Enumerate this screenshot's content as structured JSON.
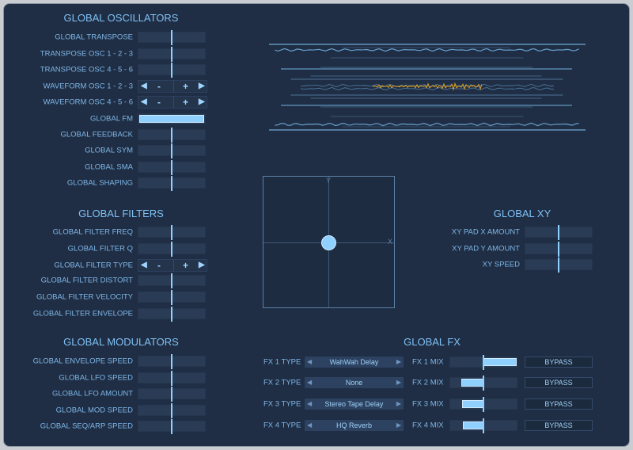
{
  "accent": "#8fd0ff",
  "wave_color": "#e0a020",
  "oscillators": {
    "title": "GLOBAL OSCILLATORS",
    "rows": [
      {
        "label": "GLOBAL TRANSPOSE",
        "type": "slider",
        "value": 0.5
      },
      {
        "label": "TRANSPOSE OSC 1 - 2 - 3",
        "type": "slider",
        "value": 0.5
      },
      {
        "label": "TRANSPOSE OSC 4 - 5 - 6",
        "type": "slider",
        "value": 0.5
      },
      {
        "label": "WAVEFORM OSC 1 - 2 - 3",
        "type": "stepper"
      },
      {
        "label": "WAVEFORM OSC 4 - 5 - 6",
        "type": "stepper"
      },
      {
        "label": "GLOBAL FM",
        "type": "fill",
        "value": 1.0
      },
      {
        "label": "GLOBAL FEEDBACK",
        "type": "slider",
        "value": 0.5
      },
      {
        "label": "GLOBAL SYM",
        "type": "slider",
        "value": 0.5
      },
      {
        "label": "GLOBAL SMA",
        "type": "slider",
        "value": 0.5
      },
      {
        "label": "GLOBAL SHAPING",
        "type": "slider",
        "value": 0.5
      }
    ]
  },
  "filters": {
    "title": "GLOBAL FILTERS",
    "rows": [
      {
        "label": "GLOBAL FILTER FREQ",
        "type": "slider",
        "value": 0.5
      },
      {
        "label": "GLOBAL FILTER Q",
        "type": "slider",
        "value": 0.5
      },
      {
        "label": "GLOBAL FILTER TYPE",
        "type": "stepper"
      },
      {
        "label": "GLOBAL FILTER DISTORT",
        "type": "slider",
        "value": 0.5
      },
      {
        "label": "GLOBAL FILTER VELOCITY",
        "type": "slider",
        "value": 0.5
      },
      {
        "label": "GLOBAL FILTER ENVELOPE",
        "type": "slider",
        "value": 0.5
      }
    ]
  },
  "modulators": {
    "title": "GLOBAL MODULATORS",
    "rows": [
      {
        "label": "GLOBAL ENVELOPE SPEED",
        "type": "slider",
        "value": 0.5
      },
      {
        "label": "GLOBAL LFO SPEED",
        "type": "slider",
        "value": 0.5
      },
      {
        "label": "GLOBAL LFO AMOUNT",
        "type": "slider",
        "value": 0.5
      },
      {
        "label": "GLOBAL MOD SPEED",
        "type": "slider",
        "value": 0.5
      },
      {
        "label": "GLOBAL SEQ/ARP SPEED",
        "type": "slider",
        "value": 0.5
      }
    ]
  },
  "stepper": {
    "minus": "-",
    "plus": "+",
    "left": "◀",
    "right": "▶"
  },
  "xy": {
    "title": "GLOBAL XY",
    "x_label": "X",
    "y_label": "Y",
    "pad_x": 0.5,
    "pad_y": 0.5,
    "rows": [
      {
        "label": "XY PAD X AMOUNT",
        "type": "slider",
        "value": 0.5
      },
      {
        "label": "XY PAD Y AMOUNT",
        "type": "slider",
        "value": 0.5
      },
      {
        "label": "XY SPEED",
        "type": "slider",
        "value": 0.5
      }
    ]
  },
  "fx": {
    "title": "GLOBAL FX",
    "bypass": "BYPASS",
    "rows": [
      {
        "type_label": "FX 1 TYPE",
        "type": "WahWah Delay",
        "mix_label": "FX 1 MIX",
        "mix": 1.0
      },
      {
        "type_label": "FX 2 TYPE",
        "type": "None",
        "mix_label": "FX 2 MIX",
        "mix": 0.17
      },
      {
        "type_label": "FX 3 TYPE",
        "type": "Stereo Tape Delay",
        "mix_label": "FX 3 MIX",
        "mix": 0.18
      },
      {
        "type_label": "FX 4 TYPE",
        "type": "HQ Reverb",
        "mix_label": "FX 4 MIX",
        "mix": 0.19
      }
    ]
  }
}
